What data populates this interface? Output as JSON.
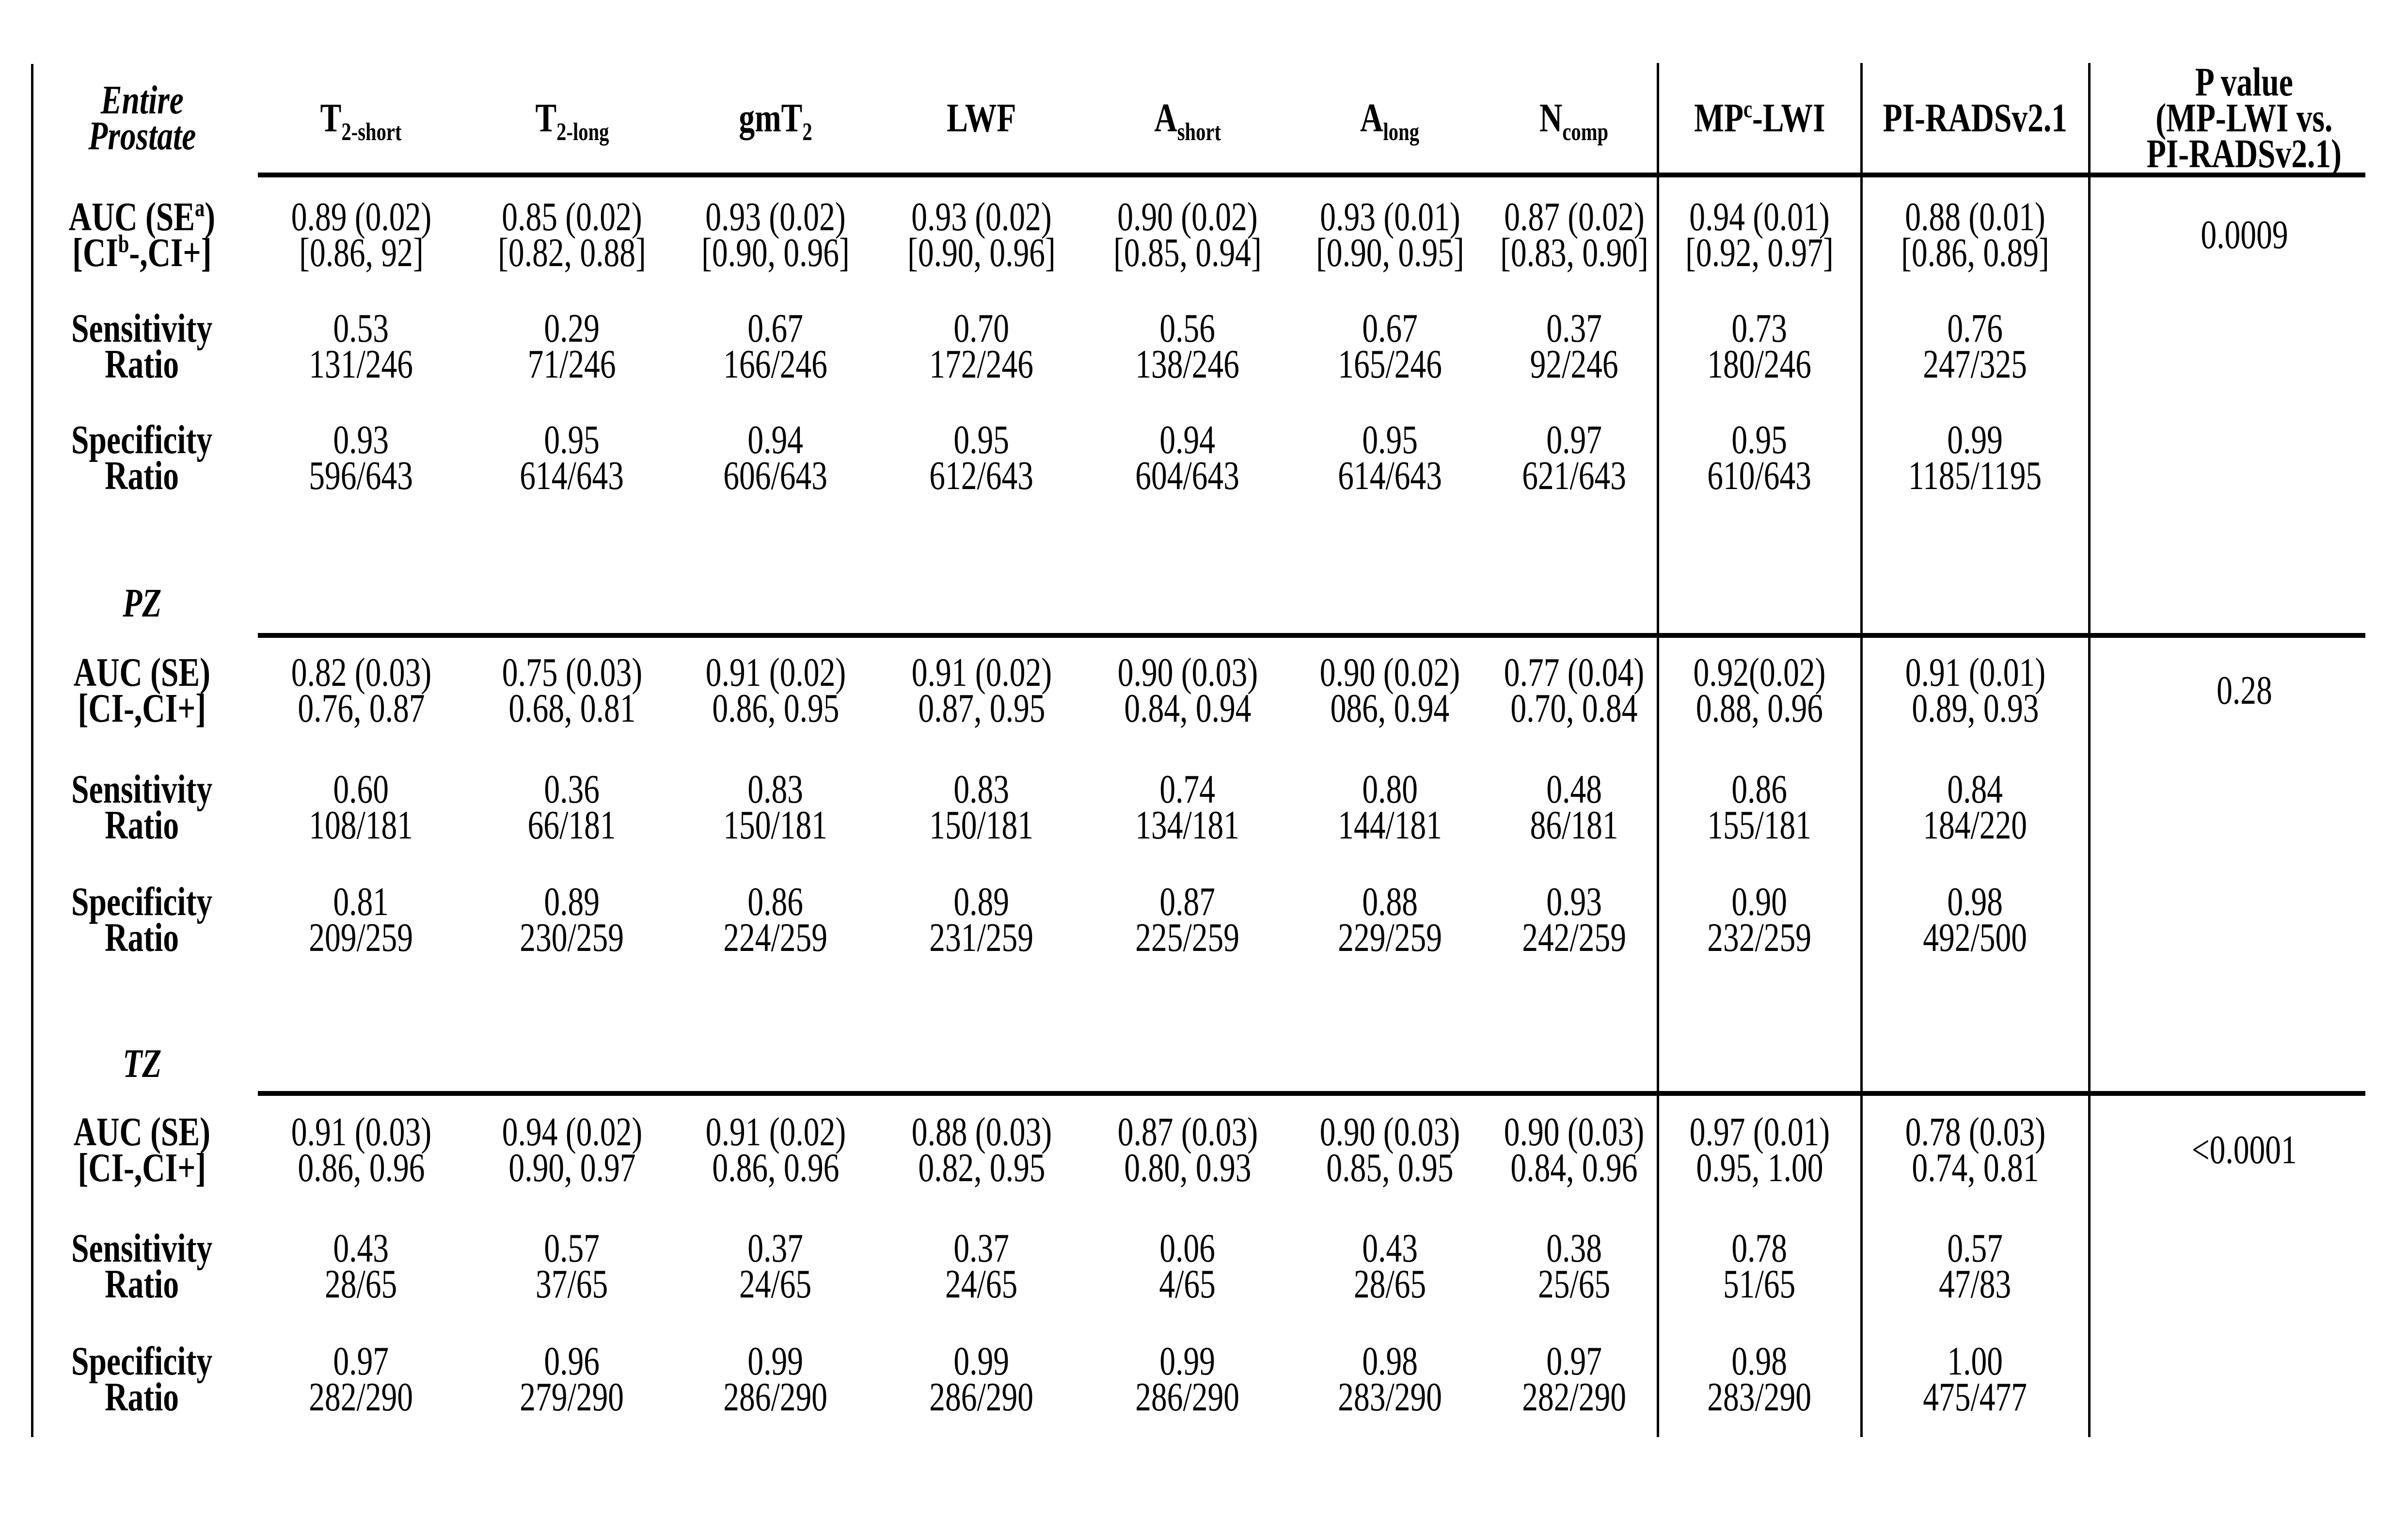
{
  "table": {
    "columns": [
      {
        "label": "Entire\nProstate"
      },
      {
        "label": "T_{2-short}"
      },
      {
        "label": "T_{2-long}"
      },
      {
        "label": "gmT_{2}"
      },
      {
        "label": "LWF"
      },
      {
        "label": "A_{short}"
      },
      {
        "label": "A_{long}"
      },
      {
        "label": "N_{comp}"
      },
      {
        "label": "MP^{c}-LWI"
      },
      {
        "label": "PI-RADSv2.1"
      },
      {
        "label": "P value\n(MP-LWI vs.\nPI-RADSv2.1)"
      }
    ],
    "sections": [
      {
        "label": "Entire Prostate",
        "rows": [
          {
            "label": "AUC (SE^{a})\n[CI^{b}-,CI+]",
            "values": [
              "0.89 (0.02)\n[0.86, 92]",
              "0.85 (0.02)\n[0.82, 0.88]",
              "0.93 (0.02)\n[0.90, 0.96]",
              "0.93 (0.02)\n[0.90, 0.96]",
              "0.90 (0.02)\n[0.85, 0.94]",
              "0.93 (0.01)\n[0.90, 0.95]",
              "0.87 (0.02)\n[0.83, 0.90]",
              "0.94 (0.01)\n[0.92, 0.97]",
              "0.88 (0.01)\n[0.86, 0.89]"
            ],
            "p": "0.0009"
          },
          {
            "label": "Sensitivity\nRatio",
            "values": [
              "0.53\n131/246",
              "0.29\n71/246",
              "0.67\n166/246",
              "0.70\n172/246",
              "0.56\n138/246",
              "0.67\n165/246",
              "0.37\n92/246",
              "0.73\n180/246",
              "0.76\n247/325"
            ],
            "p": ""
          },
          {
            "label": "Specificity\nRatio",
            "values": [
              "0.93\n596/643",
              "0.95\n614/643",
              "0.94\n606/643",
              "0.95\n612/643",
              "0.94\n604/643",
              "0.95\n614/643",
              "0.97\n621/643",
              "0.95\n610/643",
              "0.99\n1185/1195"
            ],
            "p": ""
          }
        ]
      },
      {
        "label": "PZ",
        "rows": [
          {
            "label": "AUC (SE)\n[CI-,CI+]",
            "values": [
              "0.82 (0.03)\n0.76, 0.87",
              "0.75 (0.03)\n0.68, 0.81",
              "0.91 (0.02)\n0.86, 0.95",
              "0.91 (0.02)\n0.87, 0.95",
              "0.90 (0.03)\n0.84, 0.94",
              "0.90 (0.02)\n086, 0.94",
              "0.77 (0.04)\n0.70, 0.84",
              "0.92(0.02)\n0.88, 0.96",
              "0.91 (0.01)\n0.89, 0.93"
            ],
            "p": "0.28"
          },
          {
            "label": "Sensitivity\nRatio",
            "values": [
              "0.60\n108/181",
              "0.36\n66/181",
              "0.83\n150/181",
              "0.83\n150/181",
              "0.74\n134/181",
              "0.80\n144/181",
              "0.48\n86/181",
              "0.86\n155/181",
              "0.84\n184/220"
            ],
            "p": ""
          },
          {
            "label": "Specificity\nRatio",
            "values": [
              "0.81\n209/259",
              "0.89\n230/259",
              "0.86\n224/259",
              "0.89\n231/259",
              "0.87\n225/259",
              "0.88\n229/259",
              "0.93\n242/259",
              "0.90\n232/259",
              "0.98\n492/500"
            ],
            "p": ""
          }
        ]
      },
      {
        "label": "TZ",
        "rows": [
          {
            "label": "AUC (SE)\n[CI-,CI+]",
            "values": [
              "0.91 (0.03)\n0.86, 0.96",
              "0.94 (0.02)\n0.90, 0.97",
              "0.91 (0.02)\n0.86, 0.96",
              "0.88 (0.03)\n0.82, 0.95",
              "0.87 (0.03)\n0.80, 0.93",
              "0.90 (0.03)\n0.85, 0.95",
              "0.90 (0.03)\n0.84, 0.96",
              "0.97 (0.01)\n0.95, 1.00",
              "0.78 (0.03)\n0.74, 0.81"
            ],
            "p": "<0.0001"
          },
          {
            "label": "Sensitivity\nRatio",
            "values": [
              "0.43\n28/65",
              "0.57\n37/65",
              "0.37\n24/65",
              "0.37\n24/65",
              "0.06\n4/65",
              "0.43\n28/65",
              "0.38\n25/65",
              "0.78\n51/65",
              "0.57\n47/83"
            ],
            "p": ""
          },
          {
            "label": "Specificity\nRatio",
            "values": [
              "0.97\n282/290",
              "0.96\n279/290",
              "0.99\n286/290",
              "0.99\n286/290",
              "0.99\n286/290",
              "0.98\n283/290",
              "0.97\n282/290",
              "0.98\n283/290",
              "1.00\n475/477"
            ],
            "p": ""
          }
        ]
      }
    ]
  }
}
